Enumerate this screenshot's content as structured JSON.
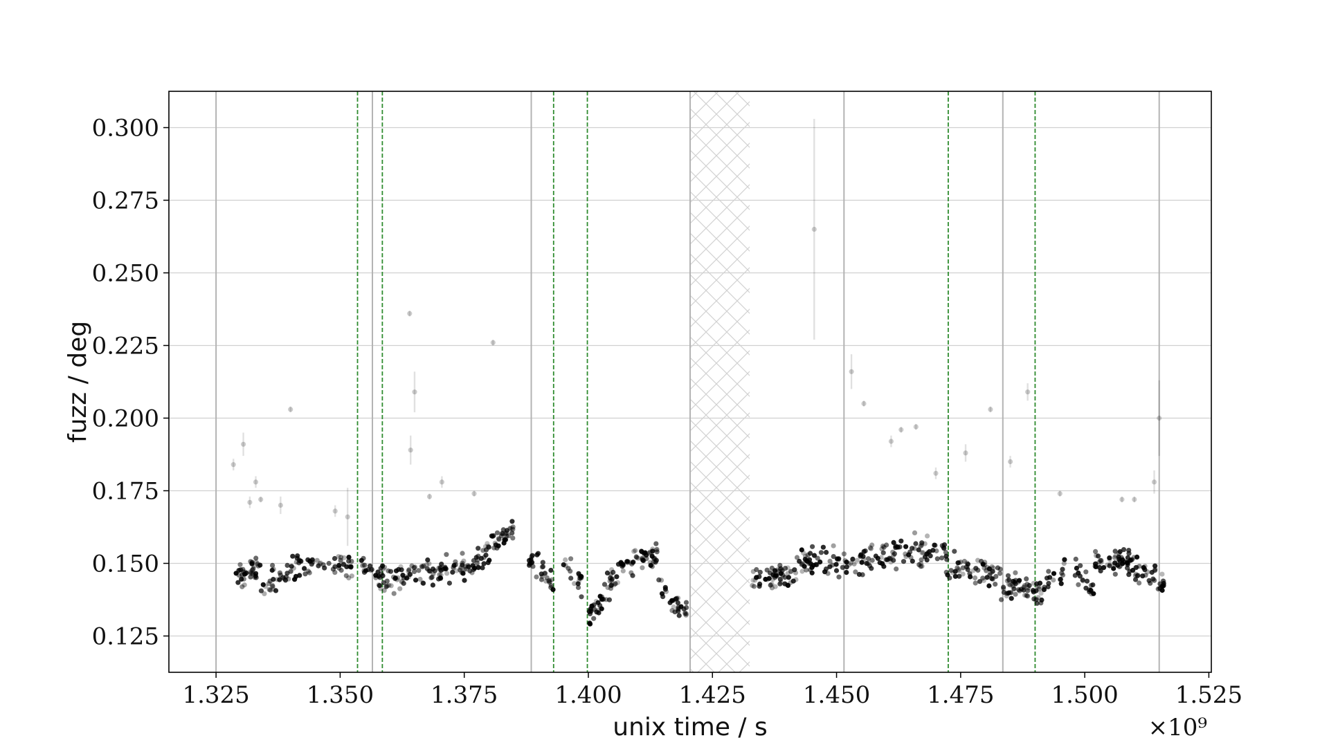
{
  "chart_data": {
    "type": "scatter",
    "xlabel": "unix time / s",
    "ylabel": "fuzz / deg",
    "x_multiplier_label": "×10⁹",
    "xlim": [
      1.3155,
      1.5255
    ],
    "ylim": [
      0.1125,
      0.3125
    ],
    "x_ticks": [
      "1.325",
      "1.350",
      "1.375",
      "1.400",
      "1.425",
      "1.450",
      "1.475",
      "1.500",
      "1.525"
    ],
    "y_ticks": [
      "0.125",
      "0.150",
      "0.175",
      "0.200",
      "0.225",
      "0.250",
      "0.275",
      "0.300"
    ],
    "grid": true,
    "gray_vertical_lines": [
      1.325,
      1.3565,
      1.3885,
      1.4205,
      1.4515,
      1.4835,
      1.515
    ],
    "green_dashed_lines": [
      1.3535,
      1.3585,
      1.393,
      1.3998,
      1.4725,
      1.49
    ],
    "hatched_region": [
      1.4205,
      1.4325
    ],
    "colors": {
      "points": "#000000",
      "green_lines": "#2e8b2e",
      "gray_lines": "#b3b3b3",
      "grid": "#d0d0d0"
    },
    "outliers": [
      {
        "x": 1.3285,
        "y": 0.184,
        "err": 0.002
      },
      {
        "x": 1.3305,
        "y": 0.191,
        "err": 0.004
      },
      {
        "x": 1.3318,
        "y": 0.171,
        "err": 0.002
      },
      {
        "x": 1.333,
        "y": 0.178,
        "err": 0.002
      },
      {
        "x": 1.334,
        "y": 0.172,
        "err": 0.001
      },
      {
        "x": 1.34,
        "y": 0.203,
        "err": 0.001
      },
      {
        "x": 1.338,
        "y": 0.17,
        "err": 0.003
      },
      {
        "x": 1.349,
        "y": 0.168,
        "err": 0.002
      },
      {
        "x": 1.3515,
        "y": 0.166,
        "err": 0.01
      },
      {
        "x": 1.364,
        "y": 0.236,
        "err": 0.001
      },
      {
        "x": 1.365,
        "y": 0.209,
        "err": 0.007
      },
      {
        "x": 1.3642,
        "y": 0.189,
        "err": 0.005
      },
      {
        "x": 1.368,
        "y": 0.173,
        "err": 0.001
      },
      {
        "x": 1.3705,
        "y": 0.178,
        "err": 0.002
      },
      {
        "x": 1.377,
        "y": 0.174,
        "err": 0.001
      },
      {
        "x": 1.3808,
        "y": 0.226,
        "err": 0.001
      },
      {
        "x": 1.4455,
        "y": 0.265,
        "err": 0.038
      },
      {
        "x": 1.453,
        "y": 0.216,
        "err": 0.006
      },
      {
        "x": 1.4555,
        "y": 0.205,
        "err": 0.001
      },
      {
        "x": 1.461,
        "y": 0.192,
        "err": 0.002
      },
      {
        "x": 1.463,
        "y": 0.196,
        "err": 0.001
      },
      {
        "x": 1.466,
        "y": 0.197,
        "err": 0.001
      },
      {
        "x": 1.47,
        "y": 0.181,
        "err": 0.002
      },
      {
        "x": 1.476,
        "y": 0.188,
        "err": 0.003
      },
      {
        "x": 1.481,
        "y": 0.203,
        "err": 0.001
      },
      {
        "x": 1.485,
        "y": 0.185,
        "err": 0.002
      },
      {
        "x": 1.4885,
        "y": 0.209,
        "err": 0.003
      },
      {
        "x": 1.495,
        "y": 0.174,
        "err": 0.001
      },
      {
        "x": 1.5075,
        "y": 0.172,
        "err": 0.001
      },
      {
        "x": 1.51,
        "y": 0.172,
        "err": 0.001
      },
      {
        "x": 1.514,
        "y": 0.178,
        "err": 0.004
      },
      {
        "x": 1.515,
        "y": 0.2,
        "err": 0.013
      }
    ],
    "segments": [
      {
        "x0": 1.329,
        "x1": 1.334,
        "y0": 0.144,
        "y1": 0.15,
        "n": 35
      },
      {
        "x0": 1.334,
        "x1": 1.342,
        "y0": 0.141,
        "y1": 0.15,
        "n": 40
      },
      {
        "x0": 1.342,
        "x1": 1.353,
        "y0": 0.148,
        "y1": 0.15,
        "n": 40
      },
      {
        "x0": 1.354,
        "x1": 1.362,
        "y0": 0.15,
        "y1": 0.143,
        "n": 45
      },
      {
        "x0": 1.362,
        "x1": 1.372,
        "y0": 0.145,
        "y1": 0.149,
        "n": 55
      },
      {
        "x0": 1.372,
        "x1": 1.379,
        "y0": 0.148,
        "y1": 0.15,
        "n": 40
      },
      {
        "x0": 1.379,
        "x1": 1.385,
        "y0": 0.155,
        "y1": 0.162,
        "n": 40
      },
      {
        "x0": 1.388,
        "x1": 1.393,
        "y0": 0.152,
        "y1": 0.143,
        "n": 30
      },
      {
        "x0": 1.395,
        "x1": 1.399,
        "y0": 0.15,
        "y1": 0.143,
        "n": 18
      },
      {
        "x0": 1.4,
        "x1": 1.406,
        "y0": 0.131,
        "y1": 0.147,
        "n": 40
      },
      {
        "x0": 1.406,
        "x1": 1.414,
        "y0": 0.149,
        "y1": 0.152,
        "n": 50
      },
      {
        "x0": 1.414,
        "x1": 1.42,
        "y0": 0.14,
        "y1": 0.133,
        "n": 30
      },
      {
        "x0": 1.433,
        "x1": 1.442,
        "y0": 0.144,
        "y1": 0.147,
        "n": 55
      },
      {
        "x0": 1.442,
        "x1": 1.456,
        "y0": 0.151,
        "y1": 0.15,
        "n": 70
      },
      {
        "x0": 1.456,
        "x1": 1.472,
        "y0": 0.152,
        "y1": 0.155,
        "n": 80
      },
      {
        "x0": 1.472,
        "x1": 1.483,
        "y0": 0.15,
        "y1": 0.146,
        "n": 60
      },
      {
        "x0": 1.483,
        "x1": 1.49,
        "y0": 0.142,
        "y1": 0.141,
        "n": 45
      },
      {
        "x0": 1.49,
        "x1": 1.496,
        "y0": 0.139,
        "y1": 0.148,
        "n": 30
      },
      {
        "x0": 1.498,
        "x1": 1.502,
        "y0": 0.147,
        "y1": 0.14,
        "n": 20
      },
      {
        "x0": 1.502,
        "x1": 1.51,
        "y0": 0.15,
        "y1": 0.152,
        "n": 55
      },
      {
        "x0": 1.51,
        "x1": 1.516,
        "y0": 0.149,
        "y1": 0.143,
        "n": 35
      }
    ]
  }
}
